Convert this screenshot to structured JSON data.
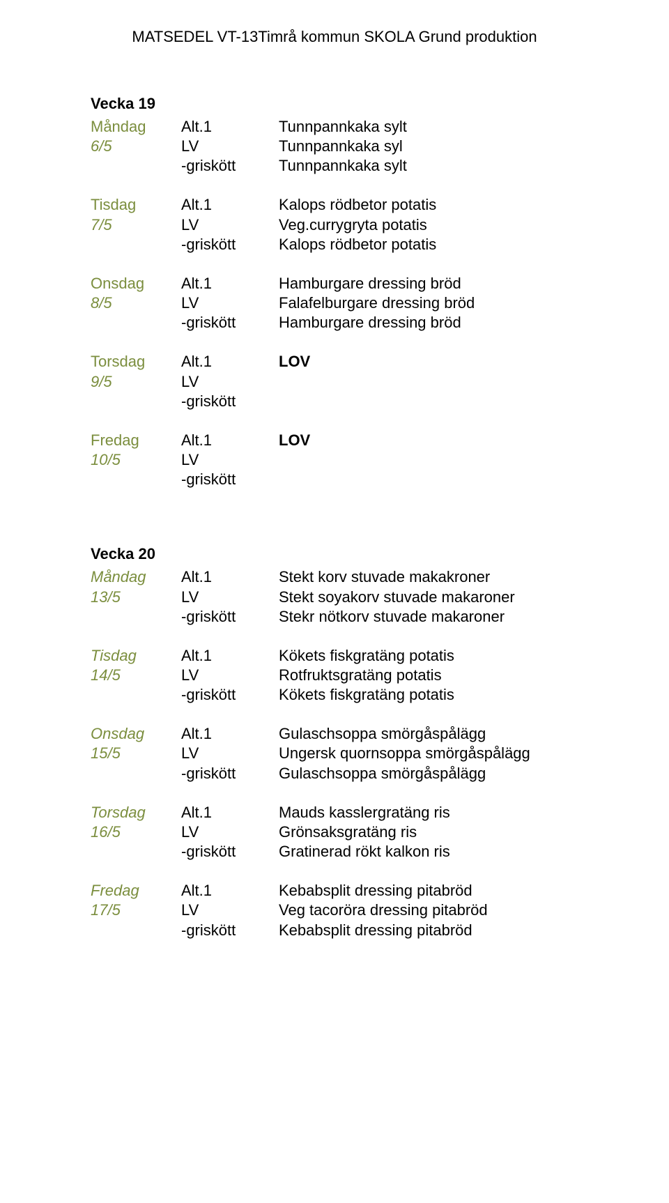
{
  "header": "MATSEDEL VT-13Timrå kommun SKOLA Grund produktion",
  "colors": {
    "text": "#000000",
    "day_label": "#7b8e3e",
    "background": "#ffffff"
  },
  "fonts": {
    "family": "Arial",
    "base_size_pt": 16
  },
  "weeks": [
    {
      "title": "Vecka 19",
      "days": [
        {
          "name": "Måndag",
          "date": "6/5",
          "italic_day": false,
          "rows": [
            {
              "label": "Alt.1",
              "dish": "Tunnpannkaka sylt",
              "bold_dish": false
            },
            {
              "label": "LV",
              "dish": "Tunnpannkaka syl",
              "bold_dish": false
            },
            {
              "label": "-griskött",
              "dish": "Tunnpannkaka sylt",
              "bold_dish": false
            }
          ]
        },
        {
          "name": "Tisdag",
          "date": "7/5",
          "italic_day": false,
          "rows": [
            {
              "label": "Alt.1",
              "dish": "Kalops rödbetor potatis",
              "bold_dish": false
            },
            {
              "label": "LV",
              "dish": "Veg.currygryta potatis",
              "bold_dish": false
            },
            {
              "label": "-griskött",
              "dish": "Kalops rödbetor potatis",
              "bold_dish": false
            }
          ]
        },
        {
          "name": "Onsdag",
          "date": "8/5",
          "italic_day": false,
          "rows": [
            {
              "label": "Alt.1",
              "dish": "Hamburgare dressing bröd",
              "bold_dish": false
            },
            {
              "label": "LV",
              "dish": " Falafelburgare dressing bröd",
              "bold_dish": false
            },
            {
              "label": "-griskött",
              "dish": "Hamburgare dressing bröd",
              "bold_dish": false
            }
          ]
        },
        {
          "name": "Torsdag",
          "date": "9/5",
          "italic_day": false,
          "rows": [
            {
              "label": "Alt.1",
              "dish": "LOV",
              "bold_dish": true
            },
            {
              "label": "LV",
              "dish": "",
              "bold_dish": false
            },
            {
              "label": "-griskött",
              "dish": "",
              "bold_dish": false
            }
          ]
        },
        {
          "name": "Fredag",
          "date": "10/5",
          "italic_day": false,
          "rows": [
            {
              "label": "Alt.1",
              "dish": "LOV",
              "bold_dish": true
            },
            {
              "label": "LV",
              "dish": "",
              "bold_dish": false
            },
            {
              "label": "-griskött",
              "dish": "",
              "bold_dish": false
            }
          ]
        }
      ]
    },
    {
      "title": "Vecka 20",
      "days": [
        {
          "name": "Måndag",
          "date": "13/5",
          "italic_day": true,
          "rows": [
            {
              "label": "Alt.1",
              "dish": "Stekt korv stuvade makakroner",
              "bold_dish": false
            },
            {
              "label": "LV",
              "dish": "Stekt soyakorv stuvade makaroner",
              "bold_dish": false
            },
            {
              "label": "-griskött",
              "dish": "Stekr nötkorv stuvade makaroner",
              "bold_dish": false
            }
          ]
        },
        {
          "name": "Tisdag",
          "date": "14/5",
          "italic_day": true,
          "rows": [
            {
              "label": "Alt.1",
              "dish": "Kökets fiskgratäng potatis",
              "bold_dish": false
            },
            {
              "label": "LV",
              "dish": "Rotfruktsgratäng potatis",
              "bold_dish": false
            },
            {
              "label": "-griskött",
              "dish": "Kökets fiskgratäng potatis",
              "bold_dish": false
            }
          ]
        },
        {
          "name": "Onsdag",
          "date": "15/5",
          "italic_day": true,
          "rows": [
            {
              "label": "Alt.1",
              "dish": "Gulaschsoppa smörgåspålägg",
              "bold_dish": false
            },
            {
              "label": "LV",
              "dish": "Ungersk quornsoppa smörgåspålägg",
              "bold_dish": false
            },
            {
              "label": "-griskött",
              "dish": "Gulaschsoppa smörgåspålägg",
              "bold_dish": false
            }
          ]
        },
        {
          "name": "Torsdag",
          "date": "16/5",
          "italic_day": true,
          "rows": [
            {
              "label": "Alt.1",
              "dish": "Mauds kasslergratäng ris",
              "bold_dish": false
            },
            {
              "label": "LV",
              "dish": "Grönsaksgratäng ris",
              "bold_dish": false
            },
            {
              "label": "-griskött",
              "dish": "Gratinerad rökt kalkon ris",
              "bold_dish": false
            }
          ]
        },
        {
          "name": "Fredag",
          "date": "17/5",
          "italic_day": true,
          "rows": [
            {
              "label": "Alt.1",
              "dish": "Kebabsplit dressing pitabröd",
              "bold_dish": false
            },
            {
              "label": "LV",
              "dish": "Veg tacoröra dressing pitabröd",
              "bold_dish": false
            },
            {
              "label": "-griskött",
              "dish": "Kebabsplit  dressing pitabröd",
              "bold_dish": false
            }
          ]
        }
      ]
    }
  ]
}
